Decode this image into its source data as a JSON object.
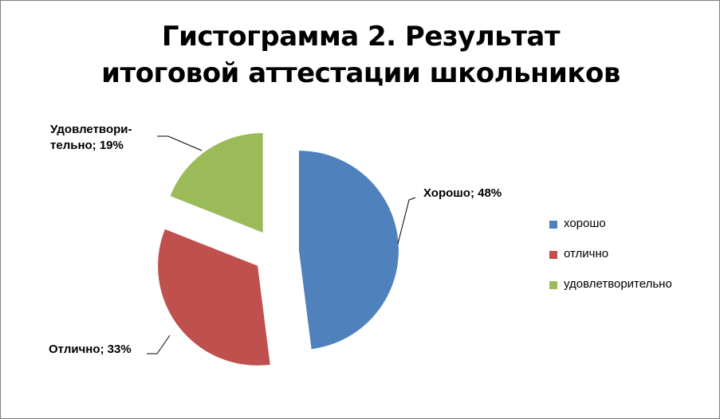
{
  "chart_data": {
    "type": "pie",
    "title": "Гистограмма 2. Результат итоговой аттестации школьников",
    "categories": [
      "хорошо",
      "отлично",
      "удовлетворительно"
    ],
    "values": [
      48,
      33,
      19
    ],
    "value_labels": [
      "Хорошо; 48%",
      "Отлично; 33%",
      "Удовлетвори-\nтельно; 19%"
    ],
    "colors": [
      "#4f81bd",
      "#c0504d",
      "#9bbb59"
    ],
    "exploded": true,
    "legend": "right"
  }
}
